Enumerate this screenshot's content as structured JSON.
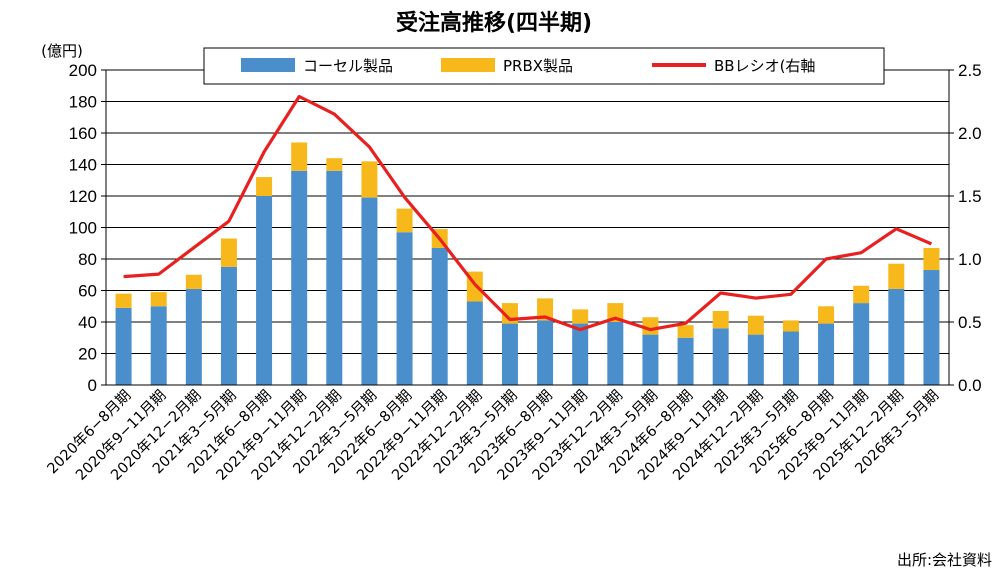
{
  "chart_data": {
    "type": "bar",
    "title": "受注高推移(四半期)",
    "y_unit_label": "(億円)",
    "source": "出所:会社資料",
    "ylim": [
      0,
      200
    ],
    "y_ticks": [
      "0",
      "20",
      "40",
      "60",
      "80",
      "100",
      "120",
      "140",
      "160",
      "180",
      "200"
    ],
    "y2lim": [
      0,
      2.5
    ],
    "y2_ticks": [
      "0.0",
      "0.5",
      "1.0",
      "1.5",
      "2.0",
      "2.5"
    ],
    "stacked": true,
    "grid": true,
    "legend_position": "top",
    "categories": [
      "2020年6−8月期",
      "2020年9−11月期",
      "2020年12−2月期",
      "2021年3−5月期",
      "2021年6−8月期",
      "2021年9−11月期",
      "2021年12−2月期",
      "2022年3−5月期",
      "2022年6−8月期",
      "2022年9−11月期",
      "2022年12−2月期",
      "2023年3−5月期",
      "2023年6−8月期",
      "2023年9−11月期",
      "2023年12−2月期",
      "2024年3−5月期",
      "2024年6−8月期",
      "2024年9−11月期",
      "2024年12−2月期",
      "2025年3−5月期",
      "2025年6−8月期",
      "2025年9−11月期",
      "2025年12−2月期",
      "2026年3−5月期"
    ],
    "series": [
      {
        "name": "コーセル製品",
        "kind": "bar",
        "color": "#4a8fcc",
        "values": [
          49,
          50,
          61,
          75,
          120,
          136,
          136,
          119,
          97,
          87,
          53,
          39,
          41,
          39,
          40,
          32,
          30,
          36,
          32,
          34,
          39,
          52,
          61,
          73
        ]
      },
      {
        "name": "PRBX製品",
        "kind": "bar",
        "color": "#f7b81c",
        "values": [
          9,
          9,
          9,
          18,
          12,
          18,
          8,
          23,
          15,
          12,
          19,
          13,
          14,
          9,
          12,
          11,
          8,
          11,
          12,
          7,
          11,
          11,
          16,
          14
        ]
      },
      {
        "name": "BBレシオ(右軸",
        "kind": "line",
        "axis": "right",
        "color": "#e8201f",
        "values": [
          0.86,
          0.88,
          1.09,
          1.3,
          1.85,
          2.29,
          2.15,
          1.89,
          1.49,
          1.16,
          0.8,
          0.52,
          0.54,
          0.44,
          0.53,
          0.44,
          0.49,
          0.73,
          0.69,
          0.72,
          1.0,
          1.05,
          1.24,
          1.12
        ]
      }
    ]
  }
}
